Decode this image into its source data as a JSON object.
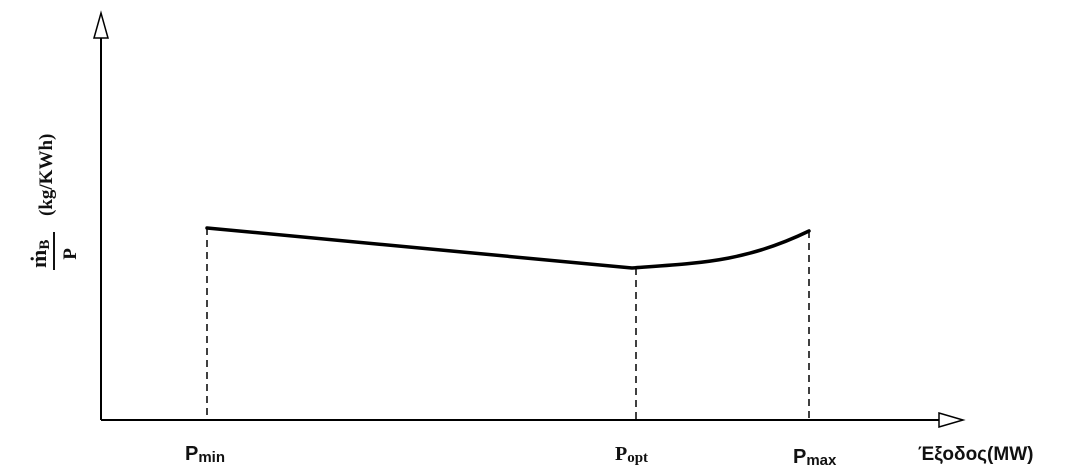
{
  "diagram": {
    "y_axis_label": {
      "numerator_symbol": "ṁ",
      "numerator_subscript": "B",
      "denominator": "P",
      "unit": "(kg/KWh)"
    },
    "x_axis_label": "Έξοδος(MW)",
    "markers": {
      "pmin": {
        "base": "P",
        "sub": "min"
      },
      "popt": {
        "base": "P",
        "sub": "opt"
      },
      "pmax": {
        "base": "P",
        "sub": "max"
      }
    }
  }
}
